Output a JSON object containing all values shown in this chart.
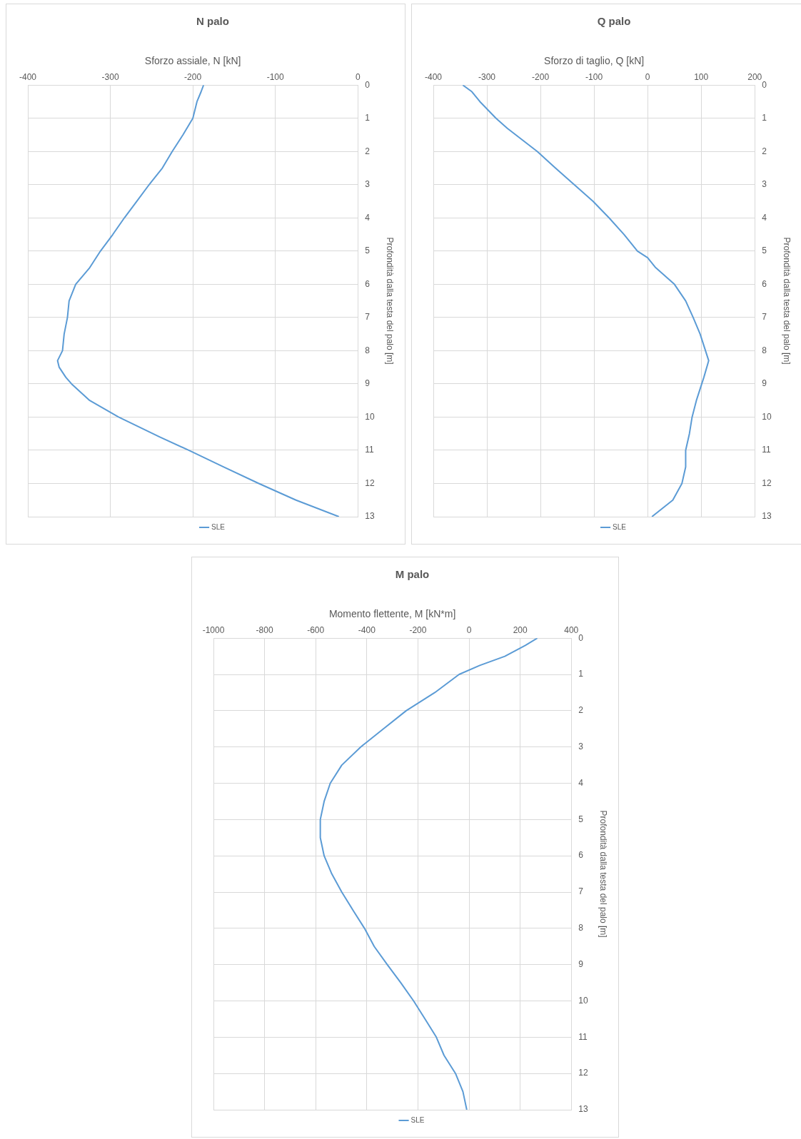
{
  "chart_data": [
    {
      "type": "line",
      "title": "N palo",
      "xlabel": "Sforzo assiale, N [kN]",
      "ylabel": "Profondità dalla testa del palo [m]",
      "xlim": [
        -400,
        0
      ],
      "xticks": [
        -400,
        -300,
        -200,
        -100,
        0
      ],
      "ylim": [
        13,
        0
      ],
      "yticks": [
        0,
        1,
        2,
        3,
        4,
        5,
        6,
        7,
        8,
        9,
        10,
        11,
        12,
        13
      ],
      "grid": true,
      "legend": "bottom",
      "marker": "none",
      "line_style": "solid",
      "series": [
        {
          "name": "SLE",
          "color": "#5b9bd5",
          "x": [
            -187,
            -190,
            -195,
            -200,
            -212,
            -225,
            -237,
            -253,
            -268,
            -283,
            -297,
            -312,
            -325,
            -342,
            -350,
            -352,
            -356,
            -358,
            -364,
            -362,
            -354,
            -347,
            -325,
            -290,
            -240,
            -205,
            -163,
            -120,
            -75,
            -23
          ],
          "values": [
            0,
            0.2,
            0.5,
            1,
            1.5,
            2,
            2.5,
            3,
            3.5,
            4,
            4.5,
            5,
            5.5,
            6,
            6.5,
            7,
            7.5,
            8,
            8.3,
            8.5,
            8.8,
            9,
            9.5,
            10,
            10.6,
            11,
            11.5,
            12,
            12.5,
            13
          ]
        }
      ]
    },
    {
      "type": "line",
      "title": "Q palo",
      "xlabel": "Sforzo di taglio, Q [kN]",
      "ylabel": "Profondità dalla testa del palo [m]",
      "xlim": [
        -400,
        200
      ],
      "xticks": [
        -400,
        -300,
        -200,
        -100,
        0,
        100,
        200
      ],
      "ylim": [
        13,
        0
      ],
      "yticks": [
        0,
        1,
        2,
        3,
        4,
        5,
        6,
        7,
        8,
        9,
        10,
        11,
        12,
        13
      ],
      "grid": true,
      "legend": "bottom",
      "marker": "none",
      "line_style": "solid",
      "series": [
        {
          "name": "SLE",
          "color": "#5b9bd5",
          "x": [
            -345,
            -328,
            -313,
            -283,
            -262,
            -206,
            -172,
            -137,
            -102,
            -72,
            -44,
            -19,
            0,
            15,
            50,
            71,
            85,
            98,
            108,
            114,
            105,
            91,
            83,
            78,
            71,
            71,
            64,
            47,
            8
          ],
          "values": [
            0,
            0.2,
            0.5,
            1,
            1.3,
            2,
            2.5,
            3,
            3.5,
            4,
            4.5,
            5,
            5.2,
            5.5,
            6,
            6.5,
            7,
            7.5,
            8,
            8.3,
            8.8,
            9.5,
            10,
            10.5,
            11,
            11.5,
            12,
            12.5,
            13
          ]
        }
      ]
    },
    {
      "type": "line",
      "title": "M palo",
      "xlabel": "Momento flettente, M [kN*m]",
      "ylabel": "Profondità dalla testa del palo [m]",
      "xlim": [
        -1000,
        400
      ],
      "xticks": [
        -1000,
        -800,
        -600,
        -400,
        -200,
        0,
        200,
        400
      ],
      "ylim": [
        13,
        0
      ],
      "yticks": [
        0,
        1,
        2,
        3,
        4,
        5,
        6,
        7,
        8,
        9,
        10,
        11,
        12,
        13
      ],
      "grid": true,
      "legend": "bottom",
      "marker": "none",
      "line_style": "solid",
      "series": [
        {
          "name": "SLE",
          "color": "#5b9bd5",
          "x": [
            267,
            220,
            140,
            42,
            -39,
            -134,
            -246,
            -335,
            -424,
            -498,
            -543,
            -567,
            -582,
            -582,
            -567,
            -537,
            -498,
            -454,
            -409,
            -371,
            -320,
            -267,
            -217,
            -172,
            -128,
            -98,
            -53,
            -24,
            -9
          ],
          "values": [
            0,
            0.2,
            0.5,
            0.75,
            1,
            1.5,
            2,
            2.5,
            3,
            3.5,
            4,
            4.5,
            5,
            5.5,
            6,
            6.5,
            7,
            7.5,
            8,
            8.5,
            9,
            9.5,
            10,
            10.5,
            11,
            11.5,
            12,
            12.5,
            13
          ]
        }
      ]
    }
  ]
}
